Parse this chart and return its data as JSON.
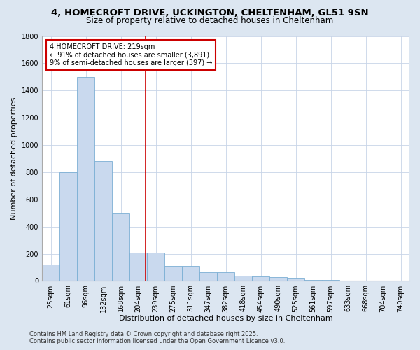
{
  "title_line1": "4, HOMECROFT DRIVE, UCKINGTON, CHELTENHAM, GL51 9SN",
  "title_line2": "Size of property relative to detached houses in Cheltenham",
  "xlabel": "Distribution of detached houses by size in Cheltenham",
  "ylabel": "Number of detached properties",
  "bar_labels": [
    "25sqm",
    "61sqm",
    "96sqm",
    "132sqm",
    "168sqm",
    "204sqm",
    "239sqm",
    "275sqm",
    "311sqm",
    "347sqm",
    "382sqm",
    "418sqm",
    "454sqm",
    "490sqm",
    "525sqm",
    "561sqm",
    "597sqm",
    "633sqm",
    "668sqm",
    "704sqm",
    "740sqm"
  ],
  "bar_values": [
    120,
    800,
    1500,
    880,
    500,
    210,
    210,
    110,
    110,
    65,
    65,
    40,
    35,
    30,
    25,
    10,
    7,
    5,
    5,
    5,
    3
  ],
  "bar_color": "#c9d9ee",
  "bar_edge_color": "#7bafd4",
  "background_color": "#dce6f1",
  "plot_bg_color": "#ffffff",
  "grid_color": "#c8d4e8",
  "vline_x_index": 5.43,
  "vline_color": "#cc0000",
  "annotation_text": "4 HOMECROFT DRIVE: 219sqm\n← 91% of detached houses are smaller (3,891)\n9% of semi-detached houses are larger (397) →",
  "annotation_box_color": "#ffffff",
  "annotation_border_color": "#cc0000",
  "ylim": [
    0,
    1800
  ],
  "yticks": [
    0,
    200,
    400,
    600,
    800,
    1000,
    1200,
    1400,
    1600,
    1800
  ],
  "footer_line1": "Contains HM Land Registry data © Crown copyright and database right 2025.",
  "footer_line2": "Contains public sector information licensed under the Open Government Licence v3.0.",
  "title_fontsize": 9.5,
  "subtitle_fontsize": 8.5,
  "axis_label_fontsize": 8,
  "tick_fontsize": 7,
  "annotation_fontsize": 7,
  "footer_fontsize": 6
}
